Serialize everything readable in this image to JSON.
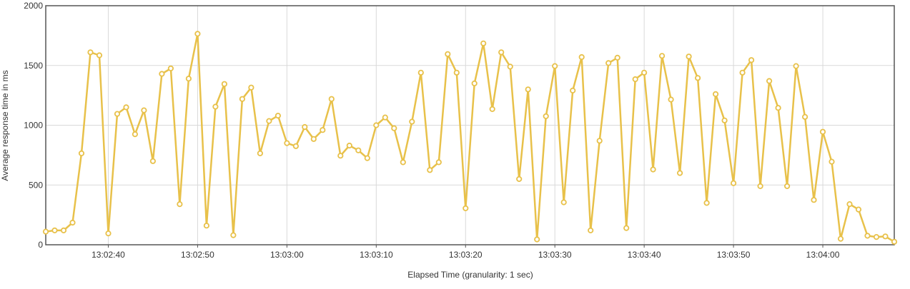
{
  "chart_data": {
    "type": "line",
    "title": "",
    "xlabel": "Elapsed Time (granularity: 1 sec)",
    "ylabel": "Average response time in ms",
    "ylim": [
      0,
      2000
    ],
    "yticks": [
      0,
      500,
      1000,
      1500,
      2000
    ],
    "ytick_labels": [
      "0",
      "500",
      "1000",
      "1500",
      "2000"
    ],
    "xticks": [
      {
        "t": "13:02:40"
      },
      {
        "t": "13:02:50"
      },
      {
        "t": "13:03:00"
      },
      {
        "t": "13:03:10"
      },
      {
        "t": "13:03:20"
      },
      {
        "t": "13:03:30"
      },
      {
        "t": "13:03:40"
      },
      {
        "t": "13:03:50"
      },
      {
        "t": "13:04:00"
      }
    ],
    "grid": true,
    "legend": "none",
    "series": [
      {
        "color": "#e8c14a",
        "x_start": "13:02:33",
        "x_step_seconds": 1,
        "values": [
          110,
          120,
          120,
          185,
          765,
          1610,
          1585,
          95,
          1095,
          1150,
          925,
          1125,
          700,
          1430,
          1475,
          340,
          1390,
          1765,
          160,
          1155,
          1345,
          80,
          1220,
          1315,
          765,
          1035,
          1080,
          850,
          825,
          985,
          885,
          960,
          1220,
          745,
          830,
          790,
          725,
          1000,
          1065,
          975,
          690,
          1030,
          1440,
          625,
          690,
          1595,
          1440,
          305,
          1350,
          1685,
          1135,
          1610,
          1490,
          550,
          1300,
          45,
          1075,
          1495,
          355,
          1290,
          1570,
          120,
          870,
          1520,
          1565,
          140,
          1385,
          1440,
          630,
          1580,
          1215,
          600,
          1575,
          1395,
          350,
          1260,
          1040,
          515,
          1440,
          1545,
          490,
          1370,
          1145,
          490,
          1495,
          1070,
          375,
          945,
          695,
          50,
          340,
          295,
          75,
          65,
          70,
          25
        ]
      }
    ]
  }
}
